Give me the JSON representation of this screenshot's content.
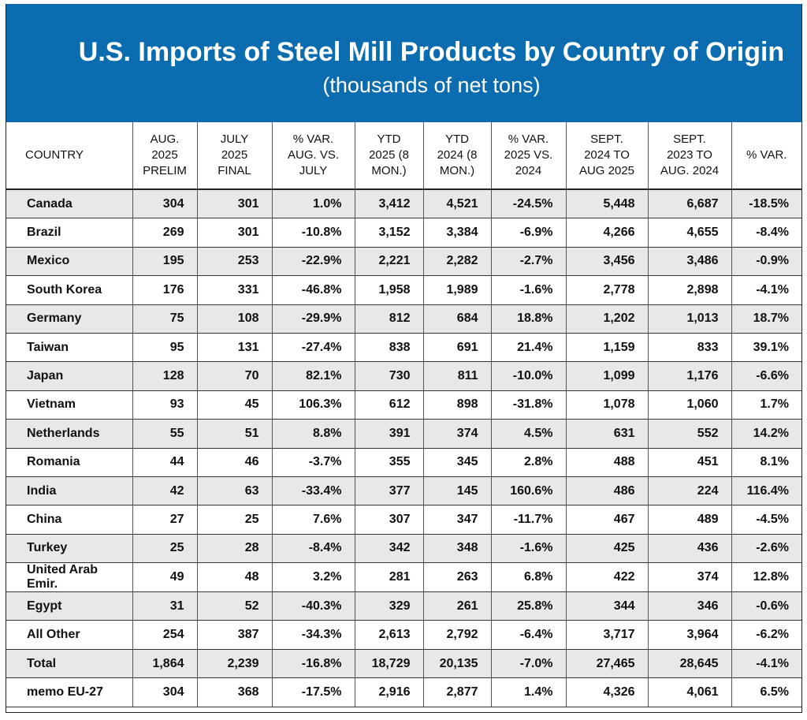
{
  "header": {
    "title": "U.S. Imports of Steel Mill Products by Country of Origin",
    "subtitle": "(thousands of net tons)"
  },
  "table": {
    "columns": [
      [
        "COUNTRY"
      ],
      [
        "AUG.",
        "2025",
        "PRELIM"
      ],
      [
        "JULY",
        "2025",
        "FINAL"
      ],
      [
        "% VAR.",
        "AUG. VS.",
        "JULY"
      ],
      [
        "YTD",
        "2025 (8",
        "MON.)"
      ],
      [
        "YTD",
        "2024 (8",
        "MON.)"
      ],
      [
        "% VAR.",
        "2025 VS.",
        "2024"
      ],
      [
        "SEPT.",
        "2024 TO",
        "AUG 2025"
      ],
      [
        "SEPT.",
        "2023 TO",
        "AUG. 2024"
      ],
      [
        "% VAR."
      ]
    ],
    "rows": [
      [
        "Canada",
        "304",
        "301",
        "1.0%",
        "3,412",
        "4,521",
        "-24.5%",
        "5,448",
        "6,687",
        "-18.5%"
      ],
      [
        "Brazil",
        "269",
        "301",
        "-10.8%",
        "3,152",
        "3,384",
        "-6.9%",
        "4,266",
        "4,655",
        "-8.4%"
      ],
      [
        "Mexico",
        "195",
        "253",
        "-22.9%",
        "2,221",
        "2,282",
        "-2.7%",
        "3,456",
        "3,486",
        "-0.9%"
      ],
      [
        "South Korea",
        "176",
        "331",
        "-46.8%",
        "1,958",
        "1,989",
        "-1.6%",
        "2,778",
        "2,898",
        "-4.1%"
      ],
      [
        "Germany",
        "75",
        "108",
        "-29.9%",
        "812",
        "684",
        "18.8%",
        "1,202",
        "1,013",
        "18.7%"
      ],
      [
        "Taiwan",
        "95",
        "131",
        "-27.4%",
        "838",
        "691",
        "21.4%",
        "1,159",
        "833",
        "39.1%"
      ],
      [
        "Japan",
        "128",
        "70",
        "82.1%",
        "730",
        "811",
        "-10.0%",
        "1,099",
        "1,176",
        "-6.6%"
      ],
      [
        "Vietnam",
        "93",
        "45",
        "106.3%",
        "612",
        "898",
        "-31.8%",
        "1,078",
        "1,060",
        "1.7%"
      ],
      [
        "Netherlands",
        "55",
        "51",
        "8.8%",
        "391",
        "374",
        "4.5%",
        "631",
        "552",
        "14.2%"
      ],
      [
        "Romania",
        "44",
        "46",
        "-3.7%",
        "355",
        "345",
        "2.8%",
        "488",
        "451",
        "8.1%"
      ],
      [
        "India",
        "42",
        "63",
        "-33.4%",
        "377",
        "145",
        "160.6%",
        "486",
        "224",
        "116.4%"
      ],
      [
        "China",
        "27",
        "25",
        "7.6%",
        "307",
        "347",
        "-11.7%",
        "467",
        "489",
        "-4.5%"
      ],
      [
        "Turkey",
        "25",
        "28",
        "-8.4%",
        "342",
        "348",
        "-1.6%",
        "425",
        "436",
        "-2.6%"
      ],
      [
        "United Arab Emir.",
        "49",
        "48",
        "3.2%",
        "281",
        "263",
        "6.8%",
        "422",
        "374",
        "12.8%"
      ],
      [
        "Egypt",
        "31",
        "52",
        "-40.3%",
        "329",
        "261",
        "25.8%",
        "344",
        "346",
        "-0.6%"
      ],
      [
        "All Other",
        "254",
        "387",
        "-34.3%",
        "2,613",
        "2,792",
        "-6.4%",
        "3,717",
        "3,964",
        "-6.2%"
      ],
      [
        "Total",
        "1,864",
        "2,239",
        "-16.8%",
        "18,729",
        "20,135",
        "-7.0%",
        "27,465",
        "28,645",
        "-4.1%"
      ],
      [
        "memo EU-27",
        "304",
        "368",
        "-17.5%",
        "2,916",
        "2,877",
        "1.4%",
        "4,326",
        "4,061",
        "6.5%"
      ]
    ]
  }
}
